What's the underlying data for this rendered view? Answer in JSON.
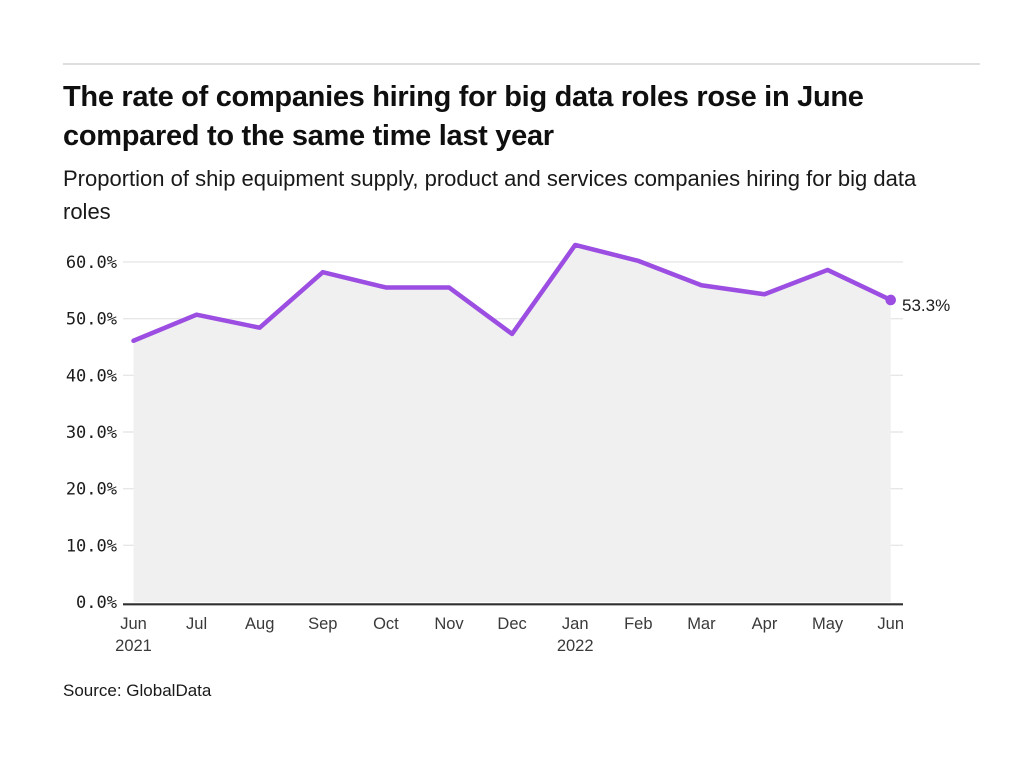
{
  "chart_data": {
    "type": "area",
    "title": "The rate of companies hiring for big data roles rose in June compared to the same time last year",
    "subtitle": "Proportion of ship equipment supply, product and services companies hiring for big data roles",
    "source": "Source: GlobalData",
    "categories": [
      "Jun",
      "Jul",
      "Aug",
      "Sep",
      "Oct",
      "Nov",
      "Dec",
      "Jan",
      "Feb",
      "Mar",
      "Apr",
      "May",
      "Jun"
    ],
    "year_labels": [
      {
        "index": 0,
        "label": "2021"
      },
      {
        "index": 7,
        "label": "2022"
      }
    ],
    "values": [
      46.1,
      50.7,
      48.4,
      58.2,
      55.5,
      55.5,
      47.3,
      63.0,
      60.2,
      55.9,
      54.3,
      58.6,
      53.3
    ],
    "end_label": "53.3%",
    "y_ticks": [
      {
        "value": 0,
        "label": "0.0%"
      },
      {
        "value": 10,
        "label": "10.0%"
      },
      {
        "value": 20,
        "label": "20.0%"
      },
      {
        "value": 30,
        "label": "30.0%"
      },
      {
        "value": 40,
        "label": "40.0%"
      },
      {
        "value": 50,
        "label": "50.0%"
      },
      {
        "value": 60,
        "label": "60.0%"
      }
    ],
    "ylim": [
      0,
      65
    ],
    "grid": "horizontal",
    "legend": "none",
    "colors": {
      "line": "#9b4ee1",
      "area": "#f0f0f0",
      "grid": "#e7e7e7",
      "axis": "#303030",
      "label": "#1c1c1c"
    }
  }
}
